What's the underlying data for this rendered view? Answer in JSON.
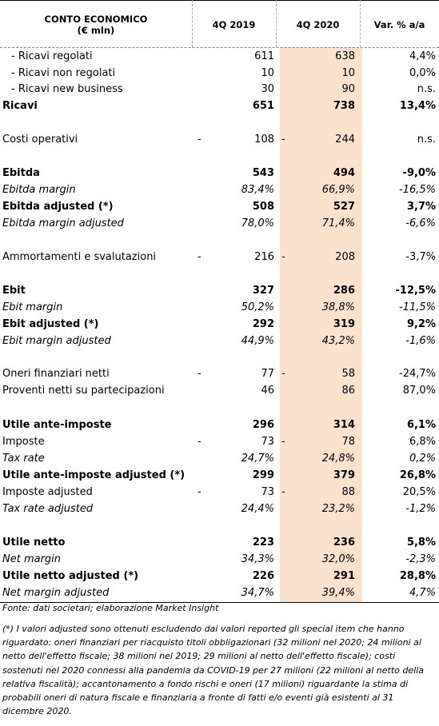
{
  "header": {
    "col0_line1": "CONTO ECONOMICO",
    "col0_line2": "(€ mln)",
    "col1": "4Q 2019",
    "col2": "4Q 2020",
    "col3": "Var. % a/a"
  },
  "rows": [
    {
      "label": "- Ricavi regolati",
      "v2019": "611",
      "v2020": "638",
      "var": "4,4%"
    },
    {
      "label": "- Ricavi non regolati",
      "v2019": "10",
      "v2020": "10",
      "var": "0,0%"
    },
    {
      "label": "- Ricavi new business",
      "v2019": "30",
      "v2020": "90",
      "var": "n.s."
    },
    {
      "label": "Ricavi",
      "v2019": "651",
      "v2020": "738",
      "var": "13,4%"
    },
    {
      "label": "Costi operativi",
      "v2019": "108",
      "v2020": "244",
      "var": "n.s.",
      "dash2019": "-",
      "dash2020": "-"
    },
    {
      "label": "Ebitda",
      "v2019": "543",
      "v2020": "494",
      "var": "-9,0%"
    },
    {
      "label": "Ebitda margin",
      "v2019": "83,4%",
      "v2020": "66,9%",
      "var": "-16,5%"
    },
    {
      "label": "Ebitda adjusted (*)",
      "v2019": "508",
      "v2020": "527",
      "var": "3,7%"
    },
    {
      "label": "Ebitda margin adjusted",
      "v2019": "78,0%",
      "v2020": "71,4%",
      "var": "-6,6%"
    },
    {
      "label": "Ammortamenti e svalutazioni",
      "v2019": "216",
      "v2020": "208",
      "var": "-3,7%",
      "dash2019": "-",
      "dash2020": "-"
    },
    {
      "label": "Ebit",
      "v2019": "327",
      "v2020": "286",
      "var": "-12,5%"
    },
    {
      "label": "Ebit margin",
      "v2019": "50,2%",
      "v2020": "38,8%",
      "var": "-11,5%"
    },
    {
      "label": "Ebit adjusted (*)",
      "v2019": "292",
      "v2020": "319",
      "var": "9,2%"
    },
    {
      "label": "Ebit margin adjusted",
      "v2019": "44,9%",
      "v2020": "43,2%",
      "var": "-1,6%"
    },
    {
      "label": "Oneri finanziari netti",
      "v2019": "77",
      "v2020": "58",
      "var": "-24,7%",
      "dash2019": "-",
      "dash2020": "-"
    },
    {
      "label": "Proventi netti su partecipazioni",
      "v2019": "46",
      "v2020": "86",
      "var": "87,0%"
    },
    {
      "label": "Utile ante-imposte",
      "v2019": "296",
      "v2020": "314",
      "var": "6,1%"
    },
    {
      "label": "Imposte",
      "v2019": "73",
      "v2020": "78",
      "var": "6,8%",
      "dash2019": "-",
      "dash2020": "-"
    },
    {
      "label": "Tax rate",
      "v2019": "24,7%",
      "v2020": "24,8%",
      "var": "0,2%"
    },
    {
      "label": "Utile ante-imposte adjusted (*)",
      "v2019": "299",
      "v2020": "379",
      "var": "26,8%"
    },
    {
      "label": "Imposte adjusted",
      "v2019": "73",
      "v2020": "88",
      "var": "20,5%",
      "dash2019": "-",
      "dash2020": "-"
    },
    {
      "label": "Tax rate adjusted",
      "v2019": "24,4%",
      "v2020": "23,2%",
      "var": "-1,2%"
    },
    {
      "label": "Utile netto",
      "v2019": "223",
      "v2020": "236",
      "var": "5,8%"
    },
    {
      "label": "Net margin",
      "v2019": "34,3%",
      "v2020": "32,0%",
      "var": "-2,3%"
    },
    {
      "label": "Utile netto adjusted (*)",
      "v2019": "226",
      "v2020": "291",
      "var": "28,8%"
    },
    {
      "label": "Net margin adjusted",
      "v2019": "34,7%",
      "v2020": "39,4%",
      "var": "4,7%"
    }
  ],
  "source": "Fonte: dati societari; elaborazione Market Insight",
  "note": "(*) I valori adjusted sono ottenuti escludendo dai valori reported gli special item che hanno riguardato: oneri finanziari per riacquisto titoli obbligazionari (32 milioni nel 2020; 24 milioni al netto dell'effetto fiscale; 38 milioni nel 2019; 29 milioni al netto dell'effetto fiscale); costi sostenuti nel 2020 connessi alla pandemia da COVID-19 per 27 milioni (22 milioni al netto della relativa fiscalità); accantonamento a fondo rischi e oneri (17 milioni) riguardante la stima di probabili oneri di natura fiscale e finanziaria a fronte di fatti e/o eventi già esistenti al 31 dicembre 2020."
}
